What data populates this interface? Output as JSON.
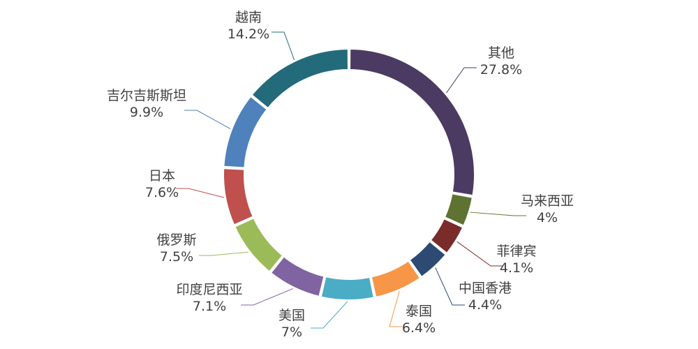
{
  "chart_data": {
    "type": "pie",
    "variant": "donut",
    "start_angle_deg": 0,
    "direction": "clockwise",
    "slices": [
      {
        "label": "其他",
        "value": 27.8,
        "value_text": "27.8%",
        "color": "#4b3a62"
      },
      {
        "label": "马来西亚",
        "value": 4.0,
        "value_text": "4%",
        "color": "#5e7331"
      },
      {
        "label": "菲律宾",
        "value": 4.1,
        "value_text": "4.1%",
        "color": "#7a2c2b"
      },
      {
        "label": "中国香港",
        "value": 4.4,
        "value_text": "4.4%",
        "color": "#2c4a72"
      },
      {
        "label": "泰国",
        "value": 6.4,
        "value_text": "6.4%",
        "color": "#f79646"
      },
      {
        "label": "美国",
        "value": 7.0,
        "value_text": "7%",
        "color": "#4bacc6"
      },
      {
        "label": "印度尼西亚",
        "value": 7.1,
        "value_text": "7.1%",
        "color": "#8064a2"
      },
      {
        "label": "俄罗斯",
        "value": 7.5,
        "value_text": "7.5%",
        "color": "#9bbb59"
      },
      {
        "label": "日本",
        "value": 7.6,
        "value_text": "7.6%",
        "color": "#c0504d"
      },
      {
        "label": "吉尔吉斯斯坦",
        "value": 9.9,
        "value_text": "9.9%",
        "color": "#4f81bd"
      },
      {
        "label": "越南",
        "value": 14.2,
        "value_text": "14.2%",
        "color": "#236b7b"
      }
    ]
  }
}
